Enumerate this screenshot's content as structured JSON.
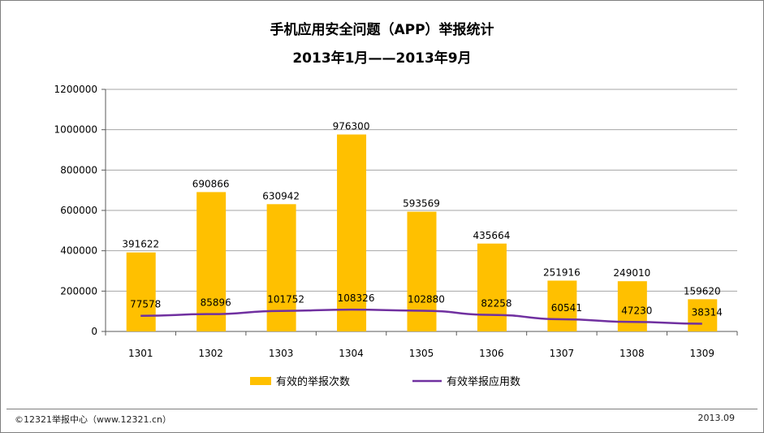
{
  "header": {
    "title_line1": "手机应用安全问题（APP）举报统计",
    "title_line2": "2013年1月——2013年9月"
  },
  "footer": {
    "source": "©12321举报中心（www.12321.cn）",
    "date": "2013.09"
  },
  "colors": {
    "bar": "#FFC000",
    "line": "#7030A0",
    "grid": "#a6a6a6",
    "axis": "#595959",
    "text": "#000000"
  },
  "chart_data": {
    "type": "bar",
    "categories": [
      "1301",
      "1302",
      "1303",
      "1304",
      "1305",
      "1306",
      "1307",
      "1308",
      "1309"
    ],
    "series": [
      {
        "name": "有效的举报次数",
        "kind": "bar",
        "values": [
          391622,
          690866,
          630942,
          976300,
          593569,
          435664,
          251916,
          249010,
          159620
        ]
      },
      {
        "name": "有效举报应用数",
        "kind": "line",
        "values": [
          77578,
          85896,
          101752,
          108326,
          102880,
          82258,
          60541,
          47230,
          38314
        ]
      }
    ],
    "yticks": [
      "0",
      "200000",
      "400000",
      "600000",
      "800000",
      "1000000",
      "1200000"
    ],
    "ylim": [
      0,
      1200000
    ],
    "grid": true,
    "legend_position": "bottom"
  }
}
